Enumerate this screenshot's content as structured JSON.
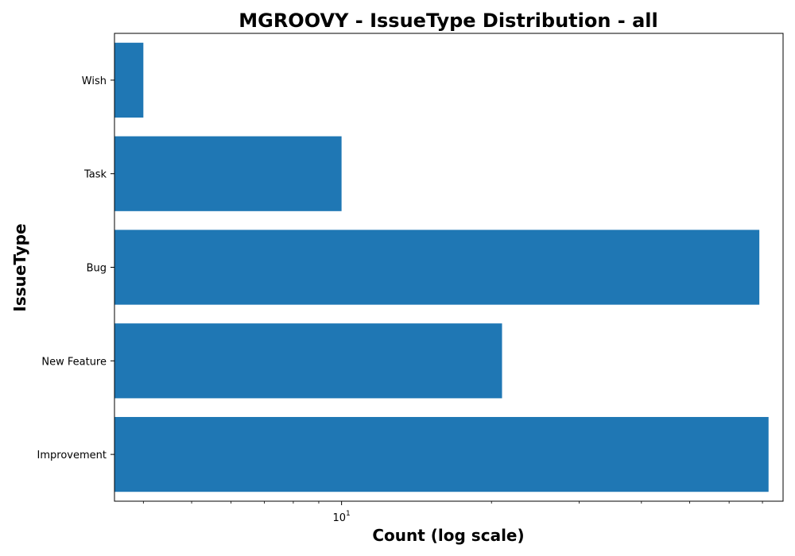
{
  "chart_data": {
    "type": "bar",
    "orientation": "horizontal",
    "title": "MGROOVY - IssueType Distribution - all",
    "xlabel": "Count (log scale)",
    "ylabel": "IssueType",
    "xscale": "log",
    "xlim": [
      3.5,
      77
    ],
    "x_tick": {
      "base": "10",
      "exponent": "1",
      "value": 10
    },
    "categories": [
      "Improvement",
      "New Feature",
      "Bug",
      "Task",
      "Wish"
    ],
    "values": [
      72,
      21,
      69,
      10,
      4
    ],
    "bar_color": "#1f77b4",
    "grid": false,
    "legend": "none"
  }
}
